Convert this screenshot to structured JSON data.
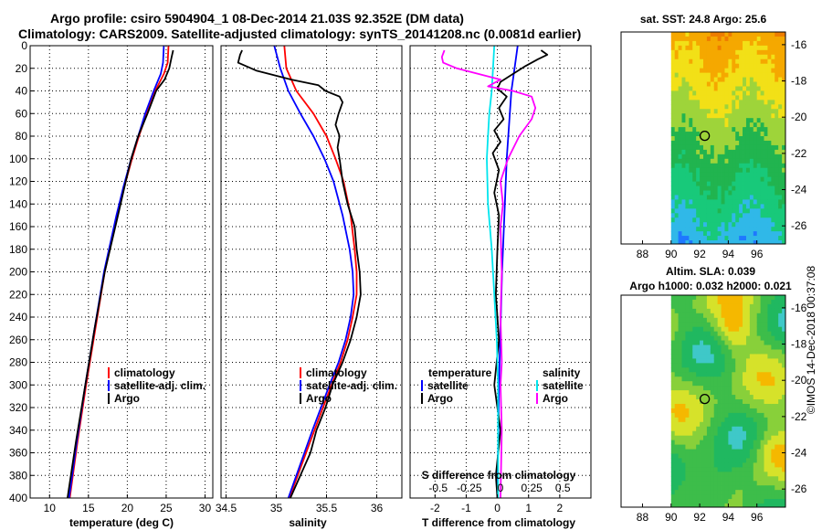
{
  "title": {
    "line1": "Argo profile: csiro 5904904_1 08-Dec-2014 21.03S 92.352E (DM data)",
    "line2": "Climatology: CARS2009. Satellite-adjusted climatology: synTS_20141208.nc (0.0081d earlier)"
  },
  "stamp": "©IMOS 14-Dec-2018 00:37:08",
  "colors": {
    "climatology": "#ff0000",
    "satellite": "#0000ff",
    "argo": "#000000",
    "sal_satellite": "#00e5ee",
    "sal_argo": "#ff00ff"
  },
  "chart_data": [
    {
      "type": "line",
      "name": "temperature",
      "xlabel": "temperature (deg C)",
      "xlim": [
        7.5,
        31
      ],
      "ylim": [
        0,
        400
      ],
      "xticks": [
        10,
        15,
        20,
        25,
        30
      ],
      "yticks": [
        0,
        20,
        40,
        60,
        80,
        100,
        120,
        140,
        160,
        180,
        200,
        220,
        240,
        260,
        280,
        300,
        320,
        340,
        360,
        380,
        400
      ],
      "grid": true,
      "legend": [
        "climatology",
        "satellite-adj. clim.",
        "Argo"
      ],
      "series": [
        {
          "name": "climatology",
          "depth": [
            0,
            15,
            25,
            40,
            60,
            80,
            100,
            125,
            150,
            200,
            250,
            300,
            350,
            400
          ],
          "values": [
            25.3,
            25.2,
            24.7,
            23.6,
            22.5,
            21.5,
            20.6,
            19.6,
            18.7,
            17.1,
            15.9,
            14.7,
            13.6,
            12.6
          ]
        },
        {
          "name": "satellite-adj. clim.",
          "depth": [
            0,
            15,
            25,
            40,
            60,
            80,
            100,
            125,
            150,
            200,
            250,
            300,
            350,
            400
          ],
          "values": [
            24.7,
            24.6,
            24.3,
            23.4,
            22.3,
            21.4,
            20.5,
            19.5,
            18.6,
            17.0,
            15.8,
            14.6,
            13.5,
            12.5
          ]
        },
        {
          "name": "Argo",
          "depth": [
            4,
            10,
            20,
            30,
            40,
            60,
            80,
            100,
            120,
            150,
            200,
            250,
            300,
            350,
            400
          ],
          "values": [
            25.9,
            25.7,
            25.4,
            24.8,
            23.7,
            22.6,
            21.4,
            20.5,
            19.8,
            18.8,
            17.1,
            15.8,
            14.6,
            13.4,
            12.3
          ]
        }
      ]
    },
    {
      "type": "line",
      "name": "salinity",
      "xlabel": "salinity",
      "xlim": [
        34.45,
        36.25
      ],
      "ylim": [
        0,
        400
      ],
      "xticks": [
        34.5,
        35,
        35.5,
        36
      ],
      "xticklabels": [
        "34.5",
        "35",
        "35.5",
        "36"
      ],
      "grid": true,
      "legend": [
        "climatology",
        "satellite-adj. clim.",
        "Argo"
      ],
      "series": [
        {
          "name": "climatology",
          "depth": [
            0,
            20,
            40,
            60,
            80,
            100,
            120,
            150,
            180,
            200,
            220,
            240,
            260,
            280,
            300,
            340,
            400
          ],
          "values": [
            35.08,
            35.1,
            35.2,
            35.37,
            35.5,
            35.59,
            35.67,
            35.74,
            35.78,
            35.8,
            35.8,
            35.76,
            35.71,
            35.64,
            35.55,
            35.38,
            35.13
          ]
        },
        {
          "name": "satellite-adj. clim.",
          "depth": [
            0,
            20,
            40,
            60,
            80,
            100,
            120,
            150,
            180,
            200,
            220,
            240,
            260,
            280,
            300,
            340,
            400
          ],
          "values": [
            34.98,
            35.04,
            35.12,
            35.24,
            35.37,
            35.48,
            35.57,
            35.66,
            35.73,
            35.76,
            35.77,
            35.74,
            35.69,
            35.62,
            35.53,
            35.36,
            35.12
          ]
        },
        {
          "name": "Argo",
          "depth": [
            4,
            8,
            15,
            22,
            30,
            35,
            40,
            45,
            50,
            60,
            70,
            80,
            90,
            100,
            120,
            140,
            160,
            180,
            200,
            220,
            240,
            260,
            280,
            300,
            320,
            340,
            360,
            380,
            400
          ],
          "values": [
            34.66,
            34.64,
            34.62,
            34.8,
            35.15,
            35.42,
            35.49,
            35.63,
            35.66,
            35.62,
            35.59,
            35.63,
            35.61,
            35.63,
            35.66,
            35.71,
            35.78,
            35.8,
            35.83,
            35.84,
            35.8,
            35.74,
            35.66,
            35.56,
            35.49,
            35.4,
            35.34,
            35.24,
            35.14
          ]
        }
      ]
    },
    {
      "type": "line",
      "name": "difference",
      "xlabel": "T difference from climatology",
      "xlabel_top": "S difference from climatology",
      "xlim": [
        -2.8,
        3.0
      ],
      "ylim": [
        0,
        400
      ],
      "xticks": [
        -2,
        -1,
        0,
        1,
        2
      ],
      "sticks": [
        -0.5,
        -0.25,
        0,
        0.25,
        0.5
      ],
      "sticklabels": [
        "-0.5",
        "-0.25",
        "0",
        "0.25",
        "0.5"
      ],
      "grid": true,
      "legend_temperature": {
        "title": "temperature",
        "items": [
          "satellite",
          "Argo"
        ]
      },
      "legend_salinity": {
        "title": "salinity",
        "items": [
          "satellite",
          "Argo"
        ]
      },
      "series": [
        {
          "name": "T satellite",
          "kind": "T",
          "depth": [
            0,
            20,
            40,
            60,
            100,
            200,
            300,
            400
          ],
          "values": [
            0.65,
            0.55,
            0.45,
            0.4,
            0.3,
            0.15,
            0.05,
            0.0
          ]
        },
        {
          "name": "T Argo",
          "kind": "T",
          "depth": [
            4,
            8,
            12,
            18,
            25,
            32,
            38,
            45,
            55,
            65,
            75,
            85,
            95,
            110,
            130,
            150,
            180,
            220,
            260,
            300,
            340,
            380,
            400
          ],
          "values": [
            1.4,
            1.6,
            1.3,
            0.9,
            0.5,
            0.1,
            0.0,
            0.3,
            0.05,
            0.2,
            -0.1,
            0.1,
            -0.15,
            0.05,
            -0.1,
            0.05,
            0.0,
            -0.05,
            0.05,
            -0.1,
            0.1,
            -0.05,
            0.0
          ]
        },
        {
          "name": "S satellite",
          "kind": "S",
          "depth": [
            0,
            20,
            40,
            60,
            80,
            100,
            140,
            180,
            220,
            260,
            300,
            340,
            400
          ],
          "values": [
            -0.05,
            -0.06,
            -0.07,
            -0.09,
            -0.1,
            -0.11,
            -0.1,
            -0.07,
            -0.05,
            -0.03,
            -0.02,
            -0.02,
            -0.02
          ]
        },
        {
          "name": "S Argo",
          "kind": "S",
          "depth": [
            4,
            10,
            15,
            20,
            30,
            36,
            40,
            45,
            55,
            65,
            80,
            100,
            120,
            140,
            160,
            200,
            240,
            280,
            300,
            340,
            400
          ],
          "values": [
            -0.45,
            -0.47,
            -0.46,
            -0.35,
            0.0,
            -0.1,
            0.1,
            0.25,
            0.28,
            0.25,
            0.15,
            0.06,
            0.0,
            0.02,
            0.0,
            0.01,
            0.0,
            0.01,
            0.0,
            0.01,
            0.0
          ]
        }
      ]
    },
    {
      "type": "heatmap",
      "name": "sst_map",
      "title": "sat. SST: 24.8 Argo: 25.6",
      "xlim": [
        86.5,
        98
      ],
      "ylim": [
        -27,
        -15.3
      ],
      "xticks": [
        88,
        90,
        92,
        94,
        96
      ],
      "yticks": [
        -16,
        -18,
        -20,
        -22,
        -24,
        -26
      ],
      "data_extent_lon": [
        90,
        98
      ],
      "float_position": [
        92.352,
        -21.03
      ]
    },
    {
      "type": "heatmap",
      "name": "sla_map",
      "title": "Altim. SLA: 0.039",
      "subtitle": "Argo h1000: 0.032 h2000: 0.021",
      "xlim": [
        86.5,
        98
      ],
      "ylim": [
        -27,
        -15.3
      ],
      "xticks": [
        88,
        90,
        92,
        94,
        96
      ],
      "yticks": [
        -16,
        -18,
        -20,
        -22,
        -24,
        -26
      ],
      "data_extent_lon": [
        90,
        98
      ],
      "float_position": [
        92.352,
        -21.03
      ]
    }
  ]
}
